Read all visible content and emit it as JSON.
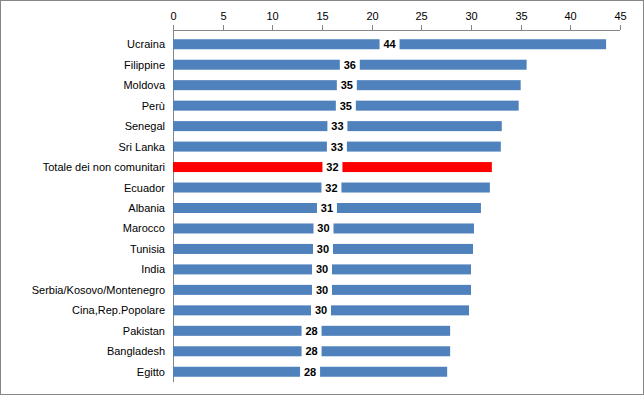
{
  "chart_data": {
    "type": "bar",
    "orientation": "horizontal",
    "categories": [
      "Ucraina",
      "Filippine",
      "Moldova",
      "Perù",
      "Senegal",
      "Sri Lanka",
      "Totale dei non comunitari",
      "Ecuador",
      "Albania",
      "Marocco",
      "Tunisia",
      "India",
      "Serbia/Kosovo/Montenegro",
      "Cina,Rep.Popolare",
      "Pakistan",
      "Bangladesh",
      "Egitto"
    ],
    "values": [
      43.6,
      35.6,
      35.0,
      34.8,
      33.1,
      33.0,
      32.1,
      31.9,
      31.0,
      30.3,
      30.2,
      30.0,
      30.0,
      29.8,
      27.9,
      27.9,
      27.6
    ],
    "value_labels": [
      "44",
      "36",
      "35",
      "35",
      "33",
      "33",
      "32",
      "32",
      "31",
      "30",
      "30",
      "30",
      "30",
      "30",
      "28",
      "28",
      "28"
    ],
    "colors": [
      "#4f81bd",
      "#4f81bd",
      "#4f81bd",
      "#4f81bd",
      "#4f81bd",
      "#4f81bd",
      "#ff0000",
      "#4f81bd",
      "#4f81bd",
      "#4f81bd",
      "#4f81bd",
      "#4f81bd",
      "#4f81bd",
      "#4f81bd",
      "#4f81bd",
      "#4f81bd",
      "#4f81bd"
    ],
    "xlim": [
      0,
      45
    ],
    "xticks": [
      0,
      5,
      10,
      15,
      20,
      25,
      30,
      35,
      40,
      45
    ],
    "grid": false,
    "data_labels": true
  }
}
